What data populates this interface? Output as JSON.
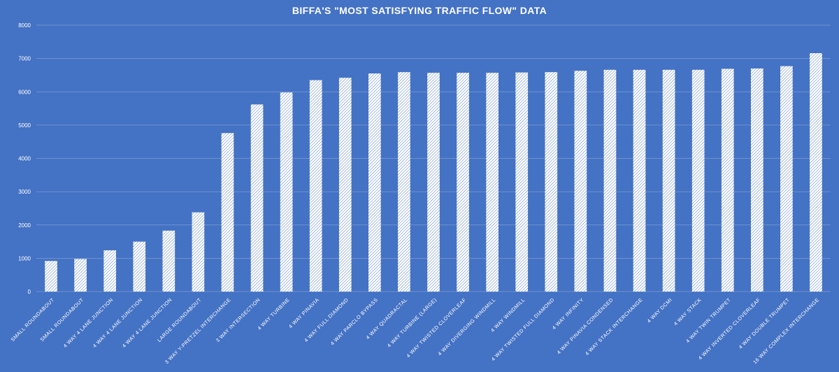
{
  "chart_data": {
    "type": "bar",
    "title": "BIFFA'S \"MOST SATISFYING TRAFFIC FLOW\" DATA",
    "xlabel": "",
    "ylabel": "",
    "ylim": [
      0,
      8000
    ],
    "yticks": [
      0,
      1000,
      2000,
      3000,
      4000,
      5000,
      6000,
      7000,
      8000
    ],
    "grid": true,
    "legend": "none",
    "categories": [
      "SMALL ROUNDABOUT",
      "SMALL ROUNDABOUT",
      "4 WAY 4 LANE JUNCTION",
      "4 WAY 4 LANE JUNCTION",
      "4 WAY 4 LANE JUNCTION",
      "LARGE ROUNDABOUT",
      "3 WAY Y-PRETZEL INTERCHANGE",
      "3 WAY INTERSECTION",
      "4 WAY TURBINE",
      "4 WAY PINAVIA",
      "4 WAY FULL DIAMOND",
      "4 WAY PARCLO BYPASS",
      "4 WAY QUADRACTAL",
      "4 WAY TURBINE (LARGE)",
      "4 WAY TWISTED CLOVERLEAF",
      "4 WAY DIVERGING WINDMILL",
      "4 WAY WINDMILL",
      "4 WAY TWISTED FULL DIAMOND",
      "4 WAY INFINITY",
      "4 WAY PINAVIA CONDENSED",
      "4 WAY STACK INTERCHANGE",
      "4 WAY DCMI",
      "4 WAY STACK",
      "4 WAY TWIN TRUMPET",
      "4 WAY INVERTED CLOVERLEAF",
      "4 WAY DOUBLE TRUMPET",
      "16 WAY COMPLEX INTERCHANGE"
    ],
    "values": [
      920,
      980,
      1240,
      1500,
      1830,
      2380,
      4760,
      5620,
      5980,
      6350,
      6420,
      6550,
      6590,
      6570,
      6570,
      6570,
      6580,
      6590,
      6630,
      6660,
      6660,
      6660,
      6660,
      6690,
      6700,
      6770,
      7160
    ],
    "colors": {
      "background": "#4472c4",
      "bar_fill": "#ffffff",
      "hatch": "#4472c4",
      "text": "#ffffff",
      "grid": "#7e9cd6"
    }
  }
}
